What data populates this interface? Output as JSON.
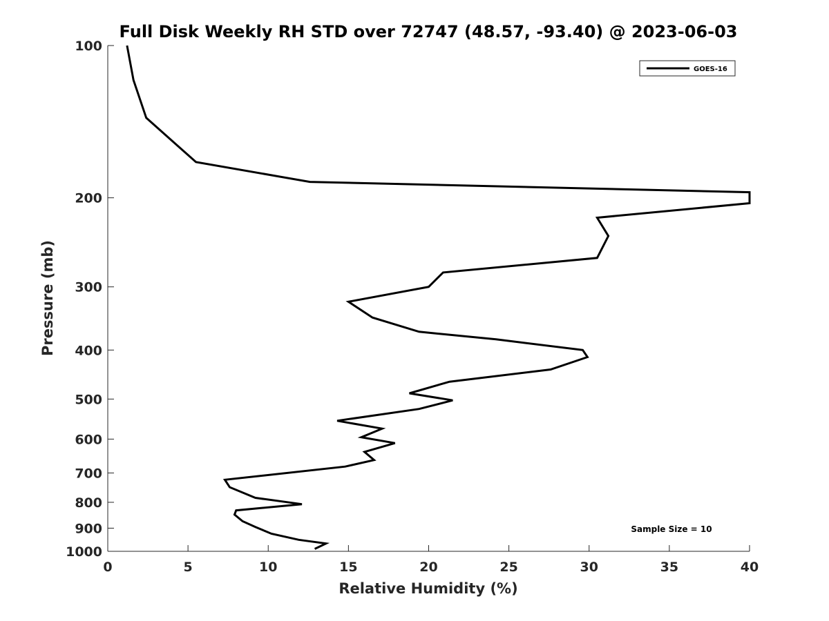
{
  "chart_data": {
    "type": "line",
    "title": "Full Disk Weekly RH STD over 72747 (48.57, -93.40) @ 2023-06-03",
    "xlabel": "Relative Humidity (%)",
    "ylabel": "Pressure (mb)",
    "xlim": [
      0,
      40
    ],
    "ylim": [
      100,
      1000
    ],
    "yscale": "log",
    "yreversed": true,
    "x_ticks": [
      0,
      5,
      10,
      15,
      20,
      25,
      30,
      35,
      40
    ],
    "x_tick_labels": [
      "0",
      "5",
      "10",
      "15",
      "20",
      "25",
      "30",
      "35",
      "40"
    ],
    "y_ticks": [
      100,
      200,
      300,
      400,
      500,
      600,
      700,
      800,
      900,
      1000
    ],
    "y_tick_labels": [
      "100",
      "200",
      "300",
      "400",
      "500",
      "600",
      "700",
      "800",
      "900",
      "1000"
    ],
    "grid": false,
    "legend_position": "top-right",
    "annotation": "Sample Size = 10",
    "colors": {
      "line": "#000000",
      "axis": "#262626"
    },
    "series": [
      {
        "name": "GOES-16",
        "x": [
          1.2,
          1.6,
          2.4,
          5.5,
          12.6,
          40.0,
          40.0,
          30.5,
          31.2,
          30.5,
          20.9,
          20.0,
          15.0,
          16.5,
          19.4,
          24.2,
          29.6,
          29.9,
          27.6,
          21.3,
          18.8,
          21.5,
          19.4,
          14.3,
          17.1,
          15.8,
          17.9,
          16.0,
          16.6,
          14.8,
          7.3,
          7.6,
          9.2,
          12.1,
          8.0,
          7.9,
          8.4,
          9.2,
          10.2,
          11.9,
          13.6,
          12.9
        ],
        "y": [
          100,
          117,
          139,
          170,
          186,
          195,
          205,
          219,
          238,
          263,
          281,
          300,
          321,
          345,
          368,
          381,
          400,
          413,
          437,
          462,
          487,
          503,
          523,
          552,
          572,
          595,
          611,
          636,
          660,
          680,
          722,
          747,
          784,
          807,
          830,
          846,
          872,
          895,
          923,
          949,
          965,
          989
        ]
      }
    ]
  }
}
